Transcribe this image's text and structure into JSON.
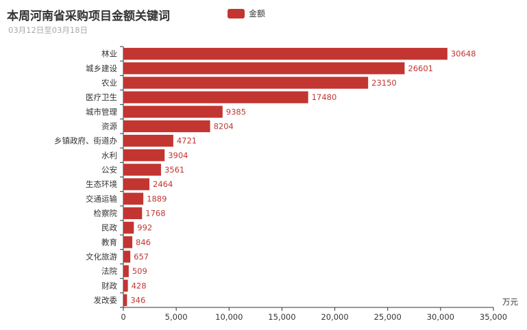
{
  "header": {
    "title": "本周河南省采购项目金额关键词",
    "subtitle": "03月12日至03月18日"
  },
  "legend": {
    "label": "金额",
    "color": "#c23531"
  },
  "chart_data": {
    "type": "bar",
    "orientation": "horizontal",
    "title": "本周河南省采购项目金额关键词",
    "subtitle": "03月12日至03月18日",
    "xlabel": "万元",
    "ylabel": "",
    "xlim": [
      0,
      35000
    ],
    "x_ticks": [
      "0",
      "5,000",
      "10,000",
      "15,000",
      "20,000",
      "25,000",
      "30,000",
      "35,000"
    ],
    "grid": false,
    "legend_position": "top",
    "categories": [
      "林业",
      "城乡建设",
      "农业",
      "医疗卫生",
      "城市管理",
      "资源",
      "乡镇政府、街道办",
      "水利",
      "公安",
      "生态环境",
      "交通运输",
      "检察院",
      "民政",
      "教育",
      "文化旅游",
      "法院",
      "财政",
      "发改委"
    ],
    "series": [
      {
        "name": "金额",
        "color": "#c23531",
        "values": [
          30648,
          26601,
          23150,
          17480,
          9385,
          8204,
          4721,
          3904,
          3561,
          2464,
          1889,
          1768,
          992,
          846,
          657,
          509,
          428,
          346
        ]
      }
    ]
  }
}
